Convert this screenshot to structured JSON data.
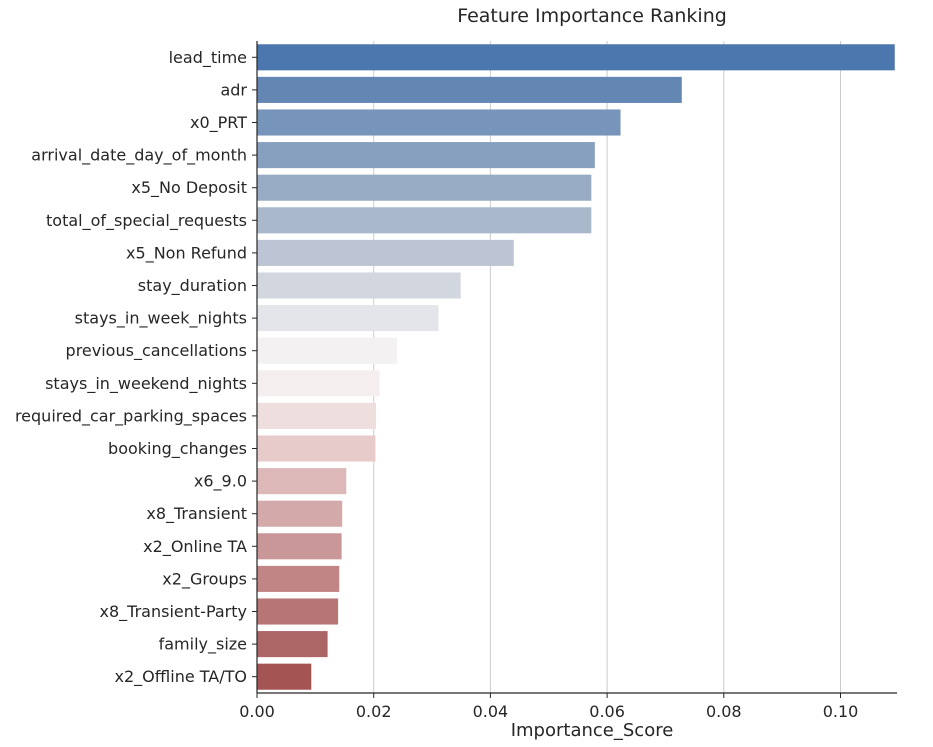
{
  "chart_data": {
    "type": "bar",
    "orientation": "horizontal",
    "title": "Feature Importance Ranking",
    "xlabel": "Importance_Score",
    "ylabel": "",
    "xlim": [
      0,
      0.11
    ],
    "xticks": [
      "0.00",
      "0.02",
      "0.04",
      "0.06",
      "0.08",
      "0.10"
    ],
    "xtick_values": [
      0,
      0.02,
      0.04,
      0.06,
      0.08,
      0.1
    ],
    "grid": "vertical",
    "palette": "blue-to-red diverging",
    "categories": [
      "lead_time",
      "adr",
      "x0_PRT",
      "arrival_date_day_of_month",
      "x5_No Deposit",
      "total_of_special_requests",
      "x5_Non Refund",
      "stay_duration",
      "stays_in_week_nights",
      "previous_cancellations",
      "stays_in_weekend_nights",
      "required_car_parking_spaces",
      "booking_changes",
      "x6_9.0",
      "x8_Transient",
      "x2_Online TA",
      "x2_Groups",
      "x8_Transient-Party",
      "family_size",
      "x2_Offline TA/TO"
    ],
    "values": [
      0.1093,
      0.0728,
      0.0623,
      0.0579,
      0.0573,
      0.0573,
      0.044,
      0.0349,
      0.0311,
      0.024,
      0.021,
      0.0204,
      0.0203,
      0.0153,
      0.0146,
      0.0145,
      0.0141,
      0.0139,
      0.0121,
      0.0093
    ],
    "colors": [
      "#4c77ae",
      "#6386b3",
      "#7794ba",
      "#88a0bf",
      "#98abc4",
      "#aab8cc",
      "#bdc5d4",
      "#d1d6df",
      "#e4e5ea",
      "#f3f1f2",
      "#f5eeee",
      "#eedede",
      "#e6cbca",
      "#dcb9b8",
      "#d3a9a9",
      "#c99797",
      "#c08584",
      "#b67676",
      "#ad6666",
      "#a45453"
    ]
  }
}
